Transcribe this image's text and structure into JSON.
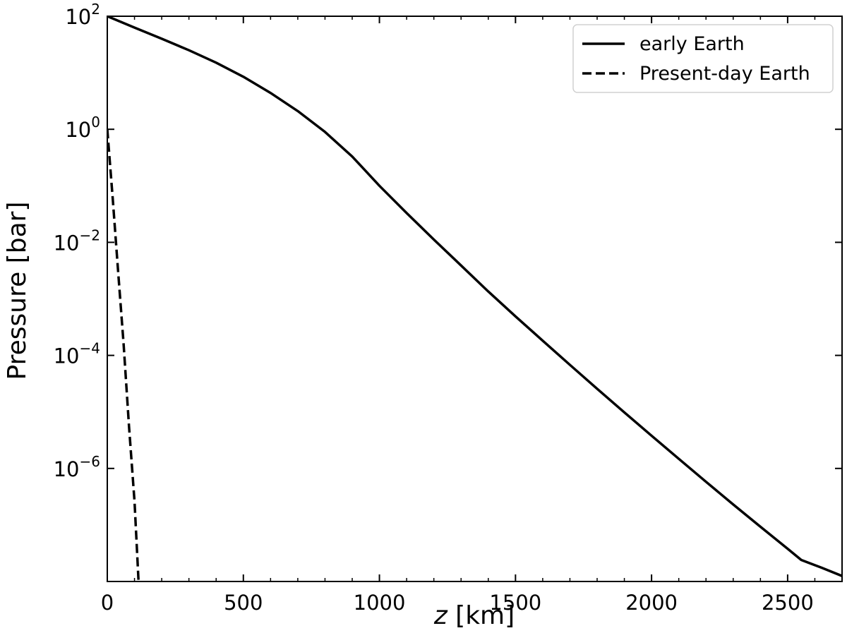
{
  "chart_data": {
    "type": "line",
    "xlabel": {
      "var": "z",
      "unit": " [km]"
    },
    "ylabel": "Pressure [bar]",
    "xlim": [
      0,
      2700
    ],
    "ylim_log10": [
      -8,
      2
    ],
    "yscale": "log",
    "xticks": [
      0,
      500,
      1000,
      1500,
      2000,
      2500
    ],
    "yticks": [
      {
        "value": 100,
        "base": "10",
        "exp": "2"
      },
      {
        "value": 1,
        "base": "10",
        "exp": "0"
      },
      {
        "value": 0.01,
        "base": "10",
        "exp": "−2"
      },
      {
        "value": 0.0001,
        "base": "10",
        "exp": "−4"
      },
      {
        "value": 1e-06,
        "base": "10",
        "exp": "−6"
      }
    ],
    "legend_position": "top-right",
    "series": [
      {
        "name": "early Earth",
        "style": "solid",
        "color": "#000000",
        "points": [
          [
            0,
            100
          ],
          [
            100,
            63
          ],
          [
            200,
            40
          ],
          [
            300,
            25
          ],
          [
            400,
            15.1
          ],
          [
            500,
            8.5
          ],
          [
            600,
            4.4
          ],
          [
            700,
            2.1
          ],
          [
            800,
            0.9
          ],
          [
            900,
            0.33
          ],
          [
            1000,
            0.1
          ],
          [
            1100,
            0.033
          ],
          [
            1200,
            0.0112
          ],
          [
            1300,
            0.0039
          ],
          [
            1400,
            0.00135
          ],
          [
            1500,
            0.00049
          ],
          [
            1600,
            0.000182
          ],
          [
            1700,
            6.8e-05
          ],
          [
            1800,
            2.57e-05
          ],
          [
            1900,
            9.8e-06
          ],
          [
            2000,
            3.8e-06
          ],
          [
            2100,
            1.48e-06
          ],
          [
            2200,
            5.8e-07
          ],
          [
            2300,
            2.3e-07
          ],
          [
            2400,
            9.3e-08
          ],
          [
            2500,
            3.8e-08
          ],
          [
            2550,
            2.4e-08
          ],
          [
            2625,
            1.75e-08
          ],
          [
            2700,
            1.25e-08
          ]
        ]
      },
      {
        "name": "Present-day Earth",
        "style": "dashed",
        "color": "#000000",
        "points": [
          [
            0,
            1
          ],
          [
            20,
            0.06
          ],
          [
            40,
            0.003
          ],
          [
            60,
            0.00016
          ],
          [
            80,
            5.5e-06
          ],
          [
            100,
            2.6e-07
          ],
          [
            115,
            1e-08
          ]
        ]
      }
    ]
  }
}
